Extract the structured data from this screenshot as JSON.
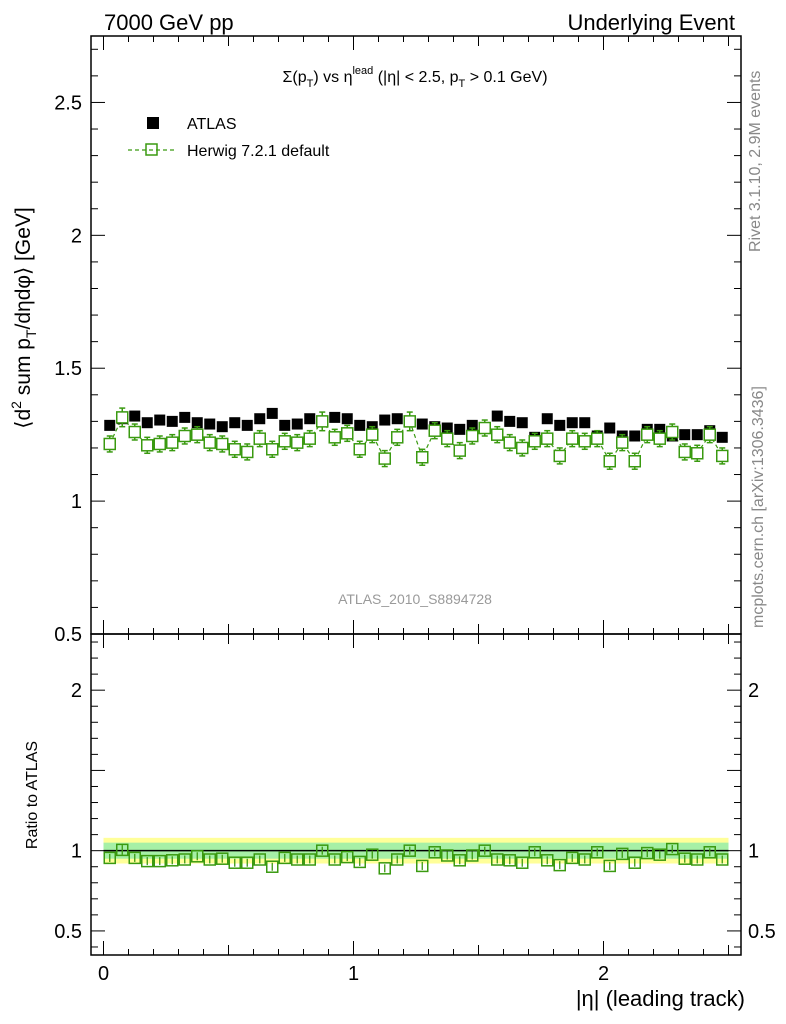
{
  "header": {
    "left": "7000 GeV pp",
    "right": "Underlying Event"
  },
  "side_labels": {
    "rivet": "Rivet 3.1.10,  2.9M events",
    "mcplots": "mcplots.cern.ch [arXiv:1306.3436]"
  },
  "watermark": "ATLAS_2010_S8894728",
  "colors": {
    "atlas": "#000000",
    "mc": "#3a9a10",
    "band_inner": "#a6f0a6",
    "band_outer": "#ffff99"
  },
  "chart_data": [
    {
      "type": "scatter",
      "title_parts": [
        "Σ(p",
        "T",
        ") vs η",
        "lead",
        " (|η| < 2.5, p",
        "T",
        " > 0.1 GeV)"
      ],
      "ylabel_parts": [
        "⟨d",
        "2",
        " sum p",
        "T",
        "/dηdφ⟩ [GeV]"
      ],
      "xlim": [
        -0.05,
        2.55
      ],
      "ylim": [
        0.5,
        2.75
      ],
      "yticks": [
        {
          "v": 0.5,
          "label": "0.5"
        },
        {
          "v": 1,
          "label": "1"
        },
        {
          "v": 1.5,
          "label": "1.5"
        },
        {
          "v": 2,
          "label": "2"
        },
        {
          "v": 2.5,
          "label": "2.5"
        }
      ],
      "legend": [
        "ATLAS",
        "Herwig 7.2.1 default"
      ],
      "x": [
        0.025,
        0.075,
        0.125,
        0.175,
        0.225,
        0.275,
        0.325,
        0.375,
        0.425,
        0.475,
        0.525,
        0.575,
        0.625,
        0.675,
        0.725,
        0.775,
        0.825,
        0.875,
        0.925,
        0.975,
        1.025,
        1.075,
        1.125,
        1.175,
        1.225,
        1.275,
        1.325,
        1.375,
        1.425,
        1.475,
        1.525,
        1.575,
        1.625,
        1.675,
        1.725,
        1.775,
        1.825,
        1.875,
        1.925,
        1.975,
        2.025,
        2.075,
        2.125,
        2.175,
        2.225,
        2.275,
        2.325,
        2.375,
        2.425,
        2.475
      ],
      "series": [
        {
          "name": "ATLAS",
          "values": [
            1.285,
            1.31,
            1.32,
            1.295,
            1.305,
            1.3,
            1.315,
            1.295,
            1.29,
            1.28,
            1.295,
            1.285,
            1.31,
            1.33,
            1.285,
            1.29,
            1.31,
            1.3,
            1.315,
            1.31,
            1.285,
            1.28,
            1.305,
            1.31,
            1.3,
            1.29,
            1.28,
            1.275,
            1.27,
            1.285,
            1.275,
            1.32,
            1.3,
            1.295,
            1.24,
            1.31,
            1.285,
            1.295,
            1.295,
            1.245,
            1.275,
            1.245,
            1.245,
            1.27,
            1.27,
            1.245,
            1.25,
            1.25,
            1.265,
            1.24
          ]
        },
        {
          "name": "Herwig 7.2.1 default",
          "values": [
            1.215,
            1.315,
            1.26,
            1.21,
            1.215,
            1.22,
            1.245,
            1.25,
            1.22,
            1.215,
            1.195,
            1.185,
            1.235,
            1.195,
            1.225,
            1.22,
            1.235,
            1.3,
            1.24,
            1.255,
            1.195,
            1.25,
            1.16,
            1.24,
            1.3,
            1.165,
            1.265,
            1.235,
            1.19,
            1.245,
            1.275,
            1.25,
            1.22,
            1.2,
            1.225,
            1.235,
            1.17,
            1.235,
            1.225,
            1.235,
            1.15,
            1.22,
            1.15,
            1.25,
            1.235,
            1.26,
            1.185,
            1.18,
            1.25,
            1.17
          ],
          "errors": [
            0.03,
            0.035,
            0.03,
            0.03,
            0.03,
            0.03,
            0.03,
            0.03,
            0.03,
            0.03,
            0.03,
            0.03,
            0.03,
            0.03,
            0.03,
            0.03,
            0.03,
            0.035,
            0.03,
            0.03,
            0.03,
            0.03,
            0.03,
            0.03,
            0.035,
            0.03,
            0.03,
            0.03,
            0.03,
            0.03,
            0.03,
            0.03,
            0.03,
            0.03,
            0.03,
            0.03,
            0.03,
            0.03,
            0.03,
            0.03,
            0.03,
            0.03,
            0.03,
            0.03,
            0.03,
            0.03,
            0.03,
            0.03,
            0.03,
            0.03
          ]
        }
      ]
    },
    {
      "type": "scatter",
      "ylabel": "Ratio to ATLAS",
      "xlabel": "|η| (leading track)",
      "xlim": [
        -0.05,
        2.55
      ],
      "ylim": [
        0.35,
        2.35
      ],
      "yticks": [
        {
          "v": 0.5,
          "label": "0.5"
        },
        {
          "v": 1,
          "label": "1"
        },
        {
          "v": 2,
          "label": "2"
        }
      ],
      "xticks": [
        {
          "v": 0,
          "label": "0"
        },
        {
          "v": 1,
          "label": "1"
        },
        {
          "v": 2,
          "label": "2"
        }
      ],
      "band_inner": [
        0.95,
        1.05
      ],
      "band_outer": [
        0.92,
        1.08
      ],
      "ratio": [
        0.955,
        1.005,
        0.955,
        0.935,
        0.935,
        0.94,
        0.945,
        0.965,
        0.945,
        0.95,
        0.925,
        0.925,
        0.945,
        0.9,
        0.955,
        0.945,
        0.945,
        1.0,
        0.945,
        0.96,
        0.93,
        0.975,
        0.89,
        0.945,
        1.0,
        0.905,
        0.99,
        0.97,
        0.94,
        0.97,
        1.0,
        0.945,
        0.94,
        0.925,
        0.99,
        0.94,
        0.91,
        0.955,
        0.945,
        0.99,
        0.905,
        0.98,
        0.925,
        0.985,
        0.975,
        1.01,
        0.95,
        0.945,
        0.99,
        0.945
      ],
      "ratio_errors": [
        0.025,
        0.03,
        0.025,
        0.025,
        0.025,
        0.025,
        0.025,
        0.025,
        0.025,
        0.025,
        0.025,
        0.025,
        0.025,
        0.025,
        0.025,
        0.025,
        0.025,
        0.025,
        0.025,
        0.025,
        0.025,
        0.025,
        0.025,
        0.025,
        0.025,
        0.025,
        0.025,
        0.025,
        0.025,
        0.025,
        0.025,
        0.025,
        0.025,
        0.025,
        0.025,
        0.025,
        0.025,
        0.025,
        0.025,
        0.025,
        0.025,
        0.025,
        0.025,
        0.025,
        0.025,
        0.025,
        0.025,
        0.025,
        0.025,
        0.025
      ]
    }
  ]
}
